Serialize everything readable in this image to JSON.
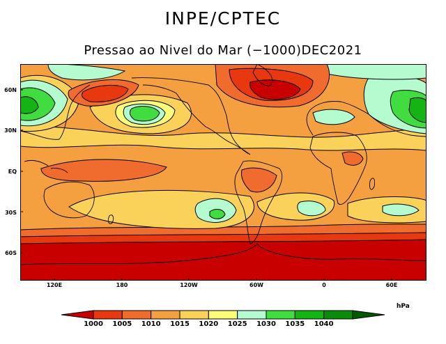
{
  "header": {
    "agency": "INPE/CPTEC",
    "title": "Pressao ao Nivel do Mar (−1000)DEC2021"
  },
  "map": {
    "projection": "cylindrical equidistant",
    "lat_labels": [
      "60N",
      "30N",
      "EQ",
      "30S",
      "60S"
    ],
    "lon_labels": [
      "120E",
      "180",
      "120W",
      "60W",
      "0",
      "60E"
    ]
  },
  "legend": {
    "unit": "hPa",
    "levels": [
      "1000",
      "1005",
      "1010",
      "1015",
      "1020",
      "1025",
      "1030",
      "1035",
      "1040"
    ],
    "colors": [
      "#c80000",
      "#e8380f",
      "#f06b2e",
      "#f5a040",
      "#fad25a",
      "#fcfc78",
      "#b4fcd0",
      "#40dc40",
      "#14b414",
      "#0a8c0a",
      "#005a00"
    ]
  }
}
